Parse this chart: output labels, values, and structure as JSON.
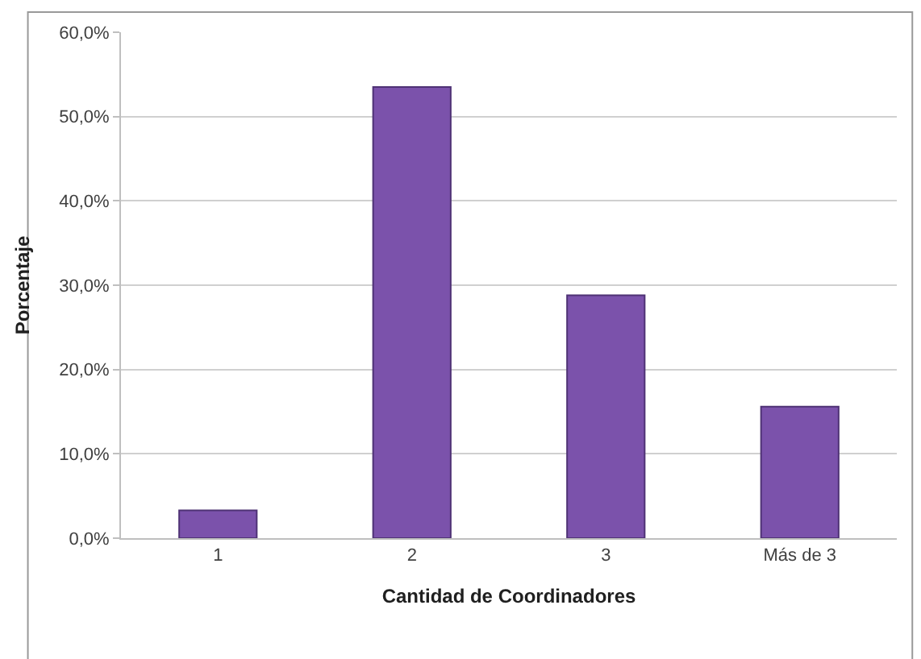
{
  "chart_data": {
    "type": "bar",
    "xlabel": "Cantidad de Coordinadores",
    "ylabel": "Porcentaje",
    "categories": [
      "1",
      "2",
      "3",
      "Más de 3"
    ],
    "values": [
      3.3,
      53.5,
      28.8,
      15.6
    ],
    "color": "#7b52ab",
    "ylim": [
      0,
      60
    ],
    "yticks": [
      {
        "value": 0,
        "label": "0,0%"
      },
      {
        "value": 10,
        "label": "10,0%"
      },
      {
        "value": 20,
        "label": "20,0%"
      },
      {
        "value": 30,
        "label": "30,0%"
      },
      {
        "value": 40,
        "label": "40,0%"
      },
      {
        "value": 50,
        "label": "50,0%"
      },
      {
        "value": 60,
        "label": "60,0%"
      }
    ],
    "grid": "y"
  }
}
